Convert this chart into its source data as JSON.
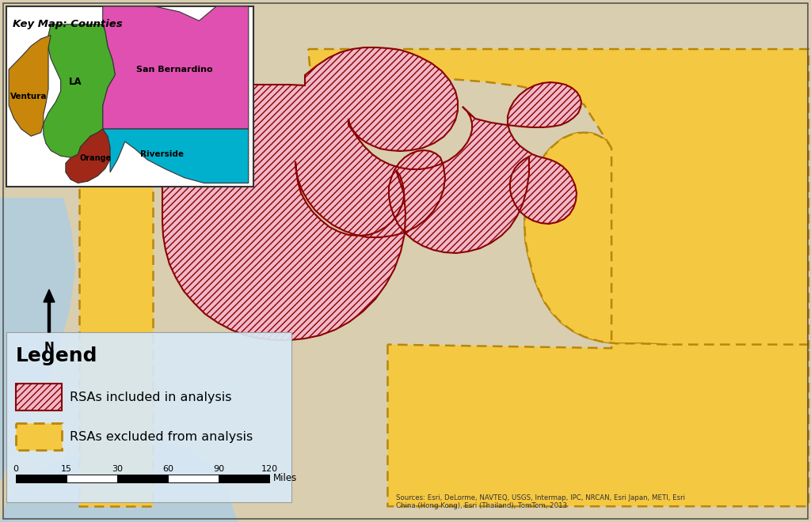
{
  "figsize": [
    10.24,
    6.6
  ],
  "dpi": 100,
  "bg_color": "#ccc5a8",
  "map_bg": "#d9ceaf",
  "legend_bg": "#d8e8f5",
  "inset_bg": "#ffffff",
  "rsa_included_fill": "#f0b8c8",
  "rsa_included_hatch": "////",
  "rsa_included_edge": "#8b0000",
  "rsa_excluded_fill": "#f5c842",
  "rsa_excluded_edge_color": "#b8860b",
  "water_color": "#b8d0e0",
  "inset_title": "Key Map: Counties",
  "legend_title": "Legend",
  "legend_item1": "RSAs included in analysis",
  "legend_item2": "RSAs excluded from analysis",
  "scale_label": "Miles",
  "scale_ticks": [
    0,
    15,
    30,
    60,
    90,
    120
  ],
  "source_text": "Sources: Esri, DeLorme, NAVTEQ, USGS, Intermap, IPC, NRCAN, Esri Japan, METI, Esri\nChina (Hong Kong), Esri (Thailand), TomTom, 2013",
  "county_colors": {
    "ventura": "#c8860a",
    "la": "#4aaa2c",
    "sb": "#e050b0",
    "orange": "#a02818",
    "riverside": "#00b0cc"
  }
}
